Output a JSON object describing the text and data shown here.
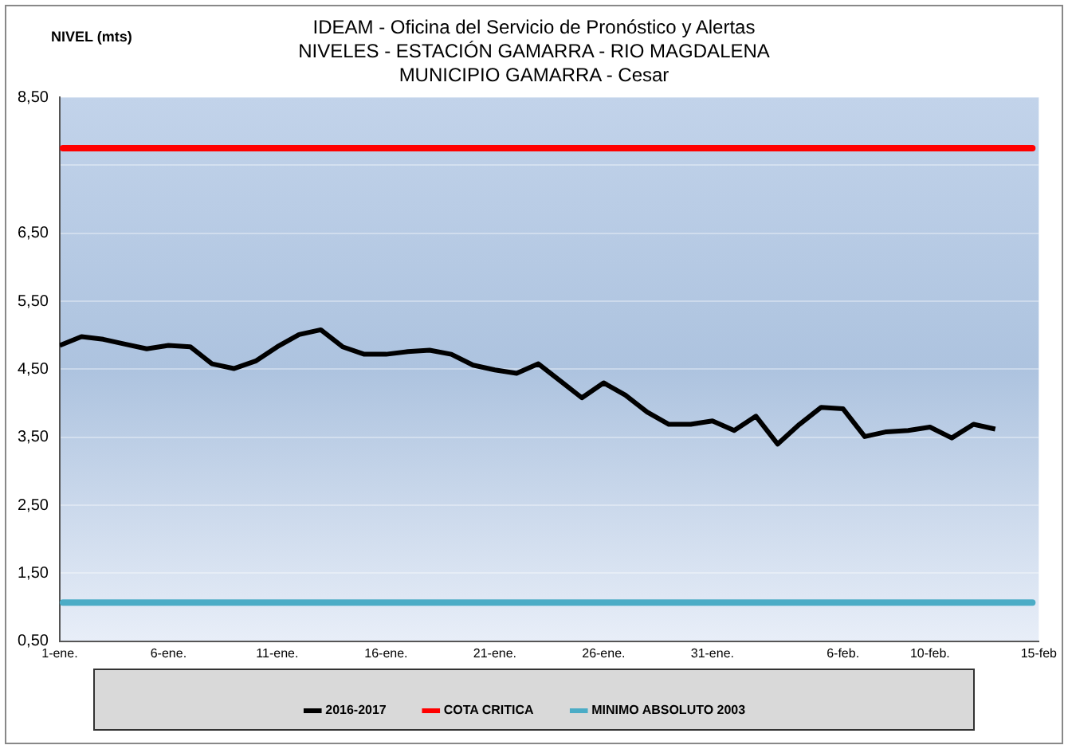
{
  "chart_data": {
    "type": "line",
    "title": "IDEAM - Oficina del Servicio de Pronóstico y Alertas",
    "subtitle": "NIVELES  - ESTACIÓN GAMARRA - RIO MAGDALENA\nMUNICIPIO GAMARRA - Cesar",
    "ylabel": "NIVEL (mts)",
    "x": [
      "--01-01",
      "--01-02",
      "--01-03",
      "--01-04",
      "--01-05",
      "--01-06",
      "--01-07",
      "--01-08",
      "--01-09",
      "--01-10",
      "--01-11",
      "--01-12",
      "--01-13",
      "--01-14",
      "--01-15",
      "--01-16",
      "--01-17",
      "--01-18",
      "--01-19",
      "--01-20",
      "--01-21",
      "--01-22",
      "--01-23",
      "--01-24",
      "--01-25",
      "--01-26",
      "--01-27",
      "--01-28",
      "--01-29",
      "--01-30",
      "--01-31",
      "--02-01",
      "--02-02",
      "--02-03",
      "--02-04",
      "--02-05",
      "--02-06",
      "--02-07",
      "--02-08",
      "--02-09",
      "--02-10",
      "--02-11",
      "--02-12",
      "--02-13"
    ],
    "series": [
      {
        "name": "2016-2017",
        "color": "#000000",
        "values": [
          4.85,
          4.98,
          4.94,
          4.87,
          4.8,
          4.85,
          4.83,
          4.58,
          4.51,
          4.62,
          4.83,
          5.01,
          5.08,
          4.83,
          4.72,
          4.72,
          4.76,
          4.78,
          4.72,
          4.56,
          4.49,
          4.44,
          4.58,
          4.33,
          4.08,
          4.3,
          4.12,
          3.87,
          3.69,
          3.69,
          3.74,
          3.6,
          3.81,
          3.4,
          3.69,
          3.94,
          3.92,
          3.51,
          3.58,
          3.6,
          3.65,
          3.49,
          3.69,
          3.62
        ]
      }
    ],
    "ref_lines": [
      {
        "axis": "y",
        "value": 7.75,
        "label": "COTA CRITICA",
        "color": "#ff0000"
      },
      {
        "axis": "y",
        "value": 1.07,
        "label": "MINIMO ABSOLUTO 2003",
        "color": "#4bacc6"
      }
    ],
    "xlim": [
      "--01-01",
      "--02-15"
    ],
    "xticks": [
      {
        "value": "--01-01",
        "label": "1-ene."
      },
      {
        "value": "--01-06",
        "label": "6-ene."
      },
      {
        "value": "--01-11",
        "label": "11-ene."
      },
      {
        "value": "--01-16",
        "label": "16-ene."
      },
      {
        "value": "--01-21",
        "label": "21-ene."
      },
      {
        "value": "--01-26",
        "label": "26-ene."
      },
      {
        "value": "--01-31",
        "label": "31-ene."
      },
      {
        "value": "--02-06",
        "label": "6-feb."
      },
      {
        "value": "--02-10",
        "label": "10-feb."
      },
      {
        "value": "--02-15",
        "label": "15-feb"
      }
    ],
    "ylim": [
      0.5,
      8.5
    ],
    "yticks": [
      {
        "value": 0.5,
        "label": "0,50"
      },
      {
        "value": 1.5,
        "label": "1,50"
      },
      {
        "value": 2.5,
        "label": "2,50"
      },
      {
        "value": 3.5,
        "label": "3,50"
      },
      {
        "value": 4.5,
        "label": "4,50"
      },
      {
        "value": 5.5,
        "label": "5,50"
      },
      {
        "value": 6.5,
        "label": "6,50"
      },
      {
        "value": 7.5,
        "label": null
      },
      {
        "value": 8.5,
        "label": "8,50"
      }
    ],
    "grid": "y",
    "legend": "bottom",
    "marker": "none",
    "line_style": "solid"
  }
}
